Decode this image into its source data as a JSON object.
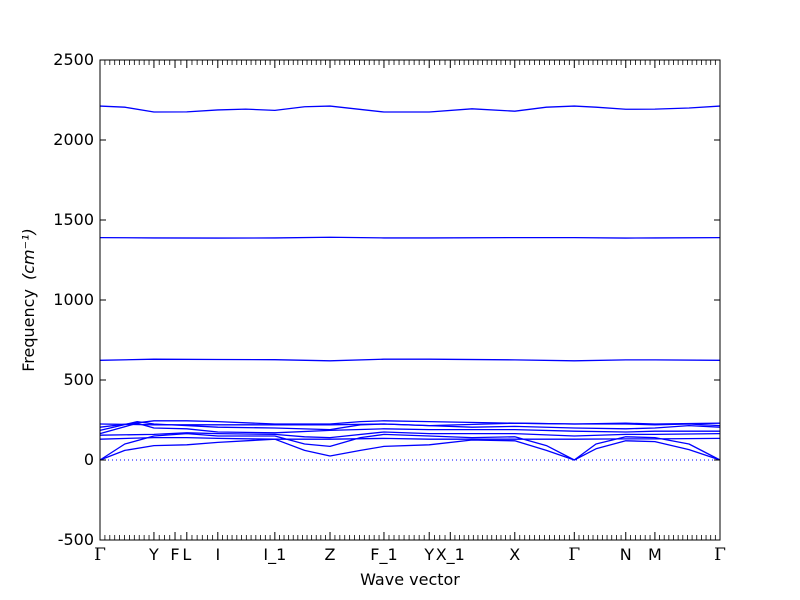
{
  "chart_data": {
    "type": "line",
    "xlabel": "Wave vector",
    "ylabel": "Frequency",
    "ylabel_unit": "(cm⁻¹)",
    "ylim": [
      -500,
      2500
    ],
    "y_ticks": [
      -500,
      0,
      500,
      1000,
      1500,
      2000,
      2500
    ],
    "x_range": [
      0,
      1
    ],
    "high_symmetry_points": [
      {
        "label": "Γ",
        "x": 0.0
      },
      {
        "label": "Y",
        "x": 0.087
      },
      {
        "label": "F",
        "x": 0.121
      },
      {
        "label": "L",
        "x": 0.14
      },
      {
        "label": "I",
        "x": 0.19
      },
      {
        "label": "I_1",
        "x": 0.282
      },
      {
        "label": "Z",
        "x": 0.371
      },
      {
        "label": "F_1",
        "x": 0.458
      },
      {
        "label": "Y",
        "x": 0.531
      },
      {
        "label": "X_1",
        "x": 0.565
      },
      {
        "label": "X",
        "x": 0.669
      },
      {
        "label": "Γ",
        "x": 0.765
      },
      {
        "label": "N",
        "x": 0.848
      },
      {
        "label": "M",
        "x": 0.895
      },
      {
        "label": "Γ",
        "x": 1.0
      }
    ],
    "line_color": "#0000ff",
    "zero_line": {
      "y": 0,
      "style": "dotted",
      "color": "#0000ff"
    },
    "series": [
      {
        "values": [
          [
            0,
            2212
          ],
          [
            0.04,
            2205
          ],
          [
            0.087,
            2175
          ],
          [
            0.14,
            2176
          ],
          [
            0.19,
            2188
          ],
          [
            0.235,
            2193
          ],
          [
            0.282,
            2185
          ],
          [
            0.33,
            2208
          ],
          [
            0.371,
            2212
          ],
          [
            0.458,
            2175
          ],
          [
            0.531,
            2175
          ],
          [
            0.6,
            2195
          ],
          [
            0.669,
            2180
          ],
          [
            0.72,
            2205
          ],
          [
            0.765,
            2212
          ],
          [
            0.8,
            2205
          ],
          [
            0.848,
            2192
          ],
          [
            0.895,
            2193
          ],
          [
            0.95,
            2200
          ],
          [
            1.0,
            2212
          ]
        ]
      },
      {
        "values": [
          [
            0,
            1390
          ],
          [
            0.087,
            1388
          ],
          [
            0.19,
            1387
          ],
          [
            0.282,
            1388
          ],
          [
            0.371,
            1392
          ],
          [
            0.458,
            1388
          ],
          [
            0.531,
            1388
          ],
          [
            0.669,
            1390
          ],
          [
            0.765,
            1390
          ],
          [
            0.848,
            1387
          ],
          [
            0.895,
            1388
          ],
          [
            1.0,
            1390
          ]
        ]
      },
      {
        "values": [
          [
            0,
            623
          ],
          [
            0.087,
            630
          ],
          [
            0.19,
            628
          ],
          [
            0.282,
            627
          ],
          [
            0.371,
            620
          ],
          [
            0.458,
            630
          ],
          [
            0.531,
            630
          ],
          [
            0.669,
            626
          ],
          [
            0.765,
            620
          ],
          [
            0.848,
            626
          ],
          [
            0.895,
            626
          ],
          [
            1.0,
            623
          ]
        ]
      },
      {
        "values": [
          [
            0,
            0
          ],
          [
            0.04,
            60
          ],
          [
            0.087,
            90
          ],
          [
            0.14,
            95
          ],
          [
            0.19,
            110
          ],
          [
            0.282,
            130
          ],
          [
            0.33,
            60
          ],
          [
            0.371,
            25
          ],
          [
            0.42,
            60
          ],
          [
            0.458,
            85
          ],
          [
            0.531,
            95
          ],
          [
            0.6,
            125
          ],
          [
            0.669,
            120
          ],
          [
            0.72,
            60
          ],
          [
            0.765,
            0
          ],
          [
            0.8,
            70
          ],
          [
            0.848,
            120
          ],
          [
            0.895,
            115
          ],
          [
            0.95,
            65
          ],
          [
            1.0,
            0
          ]
        ]
      },
      {
        "values": [
          [
            0,
            0
          ],
          [
            0.04,
            100
          ],
          [
            0.087,
            150
          ],
          [
            0.14,
            165
          ],
          [
            0.19,
            150
          ],
          [
            0.282,
            150
          ],
          [
            0.33,
            100
          ],
          [
            0.371,
            85
          ],
          [
            0.42,
            140
          ],
          [
            0.458,
            160
          ],
          [
            0.531,
            150
          ],
          [
            0.6,
            140
          ],
          [
            0.669,
            145
          ],
          [
            0.72,
            90
          ],
          [
            0.765,
            0
          ],
          [
            0.8,
            100
          ],
          [
            0.848,
            145
          ],
          [
            0.895,
            140
          ],
          [
            0.95,
            100
          ],
          [
            1.0,
            0
          ]
        ]
      },
      {
        "values": [
          [
            0,
            130
          ],
          [
            0.087,
            140
          ],
          [
            0.14,
            140
          ],
          [
            0.19,
            135
          ],
          [
            0.282,
            130
          ],
          [
            0.371,
            130
          ],
          [
            0.458,
            135
          ],
          [
            0.531,
            130
          ],
          [
            0.669,
            130
          ],
          [
            0.765,
            130
          ],
          [
            0.848,
            132
          ],
          [
            0.895,
            132
          ],
          [
            1.0,
            135
          ]
        ]
      },
      {
        "values": [
          [
            0,
            155
          ],
          [
            0.087,
            160
          ],
          [
            0.14,
            170
          ],
          [
            0.19,
            165
          ],
          [
            0.282,
            160
          ],
          [
            0.33,
            145
          ],
          [
            0.371,
            140
          ],
          [
            0.458,
            175
          ],
          [
            0.531,
            165
          ],
          [
            0.669,
            165
          ],
          [
            0.765,
            150
          ],
          [
            0.848,
            160
          ],
          [
            0.895,
            160
          ],
          [
            1.0,
            165
          ]
        ]
      },
      {
        "values": [
          [
            0,
            165
          ],
          [
            0.06,
            230
          ],
          [
            0.087,
            200
          ],
          [
            0.14,
            195
          ],
          [
            0.19,
            175
          ],
          [
            0.282,
            170
          ],
          [
            0.371,
            185
          ],
          [
            0.458,
            195
          ],
          [
            0.531,
            190
          ],
          [
            0.669,
            190
          ],
          [
            0.765,
            180
          ],
          [
            0.848,
            175
          ],
          [
            0.895,
            180
          ],
          [
            1.0,
            180
          ]
        ]
      },
      {
        "values": [
          [
            0,
            185
          ],
          [
            0.06,
            240
          ],
          [
            0.087,
            225
          ],
          [
            0.14,
            215
          ],
          [
            0.19,
            205
          ],
          [
            0.282,
            200
          ],
          [
            0.371,
            190
          ],
          [
            0.42,
            220
          ],
          [
            0.458,
            225
          ],
          [
            0.531,
            215
          ],
          [
            0.6,
            205
          ],
          [
            0.669,
            210
          ],
          [
            0.765,
            200
          ],
          [
            0.848,
            195
          ],
          [
            0.895,
            200
          ],
          [
            0.95,
            215
          ],
          [
            1.0,
            205
          ]
        ]
      },
      {
        "values": [
          [
            0,
            205
          ],
          [
            0.087,
            245
          ],
          [
            0.14,
            245
          ],
          [
            0.19,
            240
          ],
          [
            0.282,
            225
          ],
          [
            0.371,
            225
          ],
          [
            0.42,
            240
          ],
          [
            0.458,
            245
          ],
          [
            0.531,
            240
          ],
          [
            0.669,
            230
          ],
          [
            0.765,
            225
          ],
          [
            0.848,
            225
          ],
          [
            0.895,
            220
          ],
          [
            0.95,
            225
          ],
          [
            1.0,
            215
          ]
        ]
      },
      {
        "values": [
          [
            0,
            225
          ],
          [
            0.087,
            220
          ],
          [
            0.19,
            220
          ],
          [
            0.282,
            220
          ],
          [
            0.371,
            220
          ],
          [
            0.458,
            225
          ],
          [
            0.531,
            215
          ],
          [
            0.669,
            230
          ],
          [
            0.765,
            225
          ],
          [
            0.848,
            230
          ],
          [
            0.895,
            225
          ],
          [
            1.0,
            230
          ]
        ]
      }
    ]
  }
}
